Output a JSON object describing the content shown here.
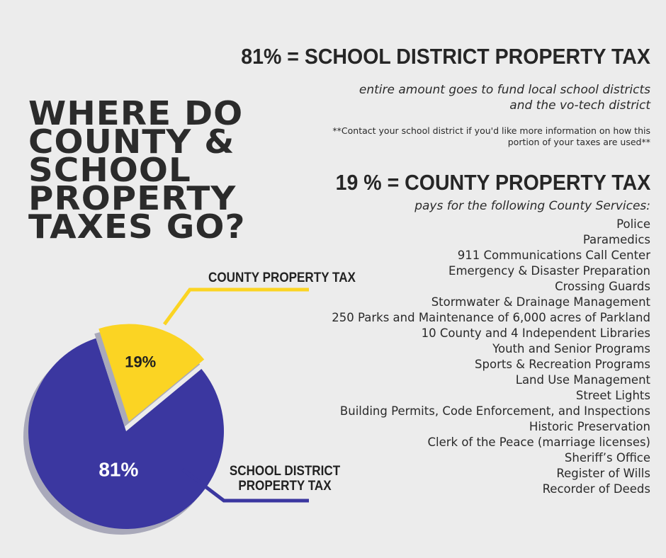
{
  "title_lines": [
    "WHERE DO",
    "COUNTY &",
    "SCHOOL",
    "PROPERTY",
    "TAXES GO?"
  ],
  "school": {
    "heading": "81% = SCHOOL DISTRICT PROPERTY TAX",
    "description": "entire amount goes to fund local school districts and the vo-tech district",
    "note": "**Contact your school district if you'd like more information on how this portion of your taxes are used**"
  },
  "county": {
    "heading": "19 % = COUNTY PROPERTY TAX",
    "subheading": "pays for the following County Services:",
    "services": [
      "Police",
      "Paramedics",
      "911 Communications Call Center",
      "Emergency & Disaster Preparation",
      "Crossing Guards",
      "Stormwater & Drainage Management",
      "250 Parks and Maintenance of 6,000 acres of Parkland",
      "10 County and 4 Independent Libraries",
      "Youth and Senior Programs",
      "Sports & Recreation Programs",
      "Land Use Management",
      "Street Lights",
      "Building Permits, Code Enforcement, and Inspections",
      "Historic Preservation",
      "Clerk of the Peace (marriage licenses)",
      "Sheriff’s Office",
      "Register of Wills",
      "Recorder of Deeds"
    ]
  },
  "chart_data": {
    "type": "pie",
    "slices": [
      {
        "label": "SCHOOL DISTRICT PROPERTY TAX",
        "label_lines": [
          "SCHOOL DISTRICT",
          "PROPERTY TAX"
        ],
        "value": 81,
        "display": "81%",
        "color": "#3b37a0"
      },
      {
        "label": "COUNTY PROPERTY TAX",
        "label_lines": [
          "COUNTY PROPERTY TAX"
        ],
        "value": 19,
        "display": "19%",
        "color": "#fbd423"
      }
    ],
    "shadow_color": "#a9a9ba"
  }
}
